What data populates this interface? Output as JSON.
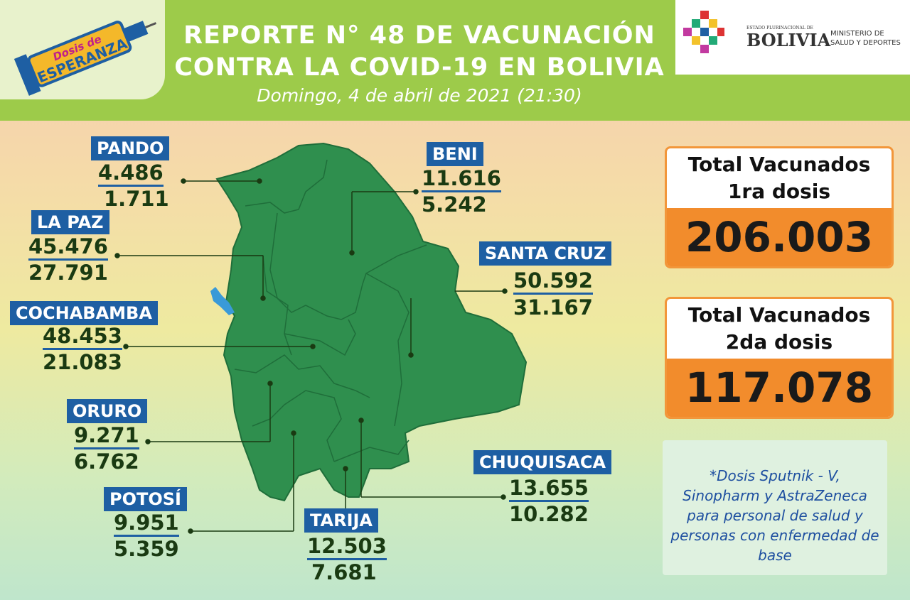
{
  "header": {
    "title_line1": "REPORTE N° 48 DE VACUNACIÓN",
    "title_line2": "CONTRA LA COVID-19 EN BOLIVIA",
    "date": "Domingo, 4 de abril de 2021 (21:30)",
    "logo_line1": "Dosis de",
    "logo_line2": "ESPERANZA",
    "gov_small": "ESTADO PLURINACIONAL DE",
    "gov_big": "BOLIVIA",
    "ministry_line1": "MINISTERIO DE",
    "ministry_line2": "SALUD Y DEPORTES"
  },
  "departments": [
    {
      "name": "PANDO",
      "first_dose": "4.486",
      "second_dose": "1.711"
    },
    {
      "name": "BENI",
      "first_dose": "11.616",
      "second_dose": "5.242"
    },
    {
      "name": "LA PAZ",
      "first_dose": "45.476",
      "second_dose": "27.791"
    },
    {
      "name": "SANTA CRUZ",
      "first_dose": "50.592",
      "second_dose": "31.167"
    },
    {
      "name": "COCHABAMBA",
      "first_dose": "48.453",
      "second_dose": "21.083"
    },
    {
      "name": "ORURO",
      "first_dose": "9.271",
      "second_dose": "6.762"
    },
    {
      "name": "CHUQUISACA",
      "first_dose": "13.655",
      "second_dose": "10.282"
    },
    {
      "name": "POTOSÍ",
      "first_dose": "9.951",
      "second_dose": "5.359"
    },
    {
      "name": "TARIJA",
      "first_dose": "12.503",
      "second_dose": "7.681"
    }
  ],
  "totals": {
    "first_label_line1": "Total Vacunados",
    "first_label_line2": "1ra dosis",
    "first_value": "206.003",
    "second_label_line1": "Total Vacunados",
    "second_label_line2": "2da dosis",
    "second_value": "117.078"
  },
  "note": "*Dosis Sputnik - V, Sinopharm y AstraZeneca para personal de salud y personas con enfermedad de base",
  "colors": {
    "map_green": "#2f8f4e",
    "label_blue": "#1e5fa3",
    "orange": "#f28c2c",
    "header_green": "#9dcb4a"
  }
}
